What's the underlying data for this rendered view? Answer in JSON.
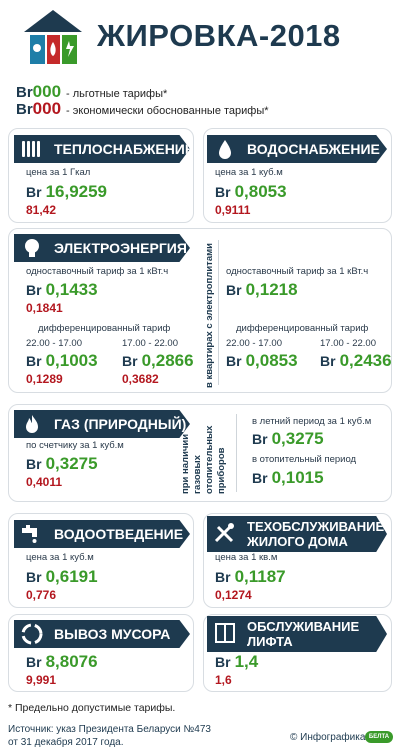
{
  "header": {
    "title": "ЖИРОВКА-2018"
  },
  "legend": {
    "br": "Br",
    "digits": "000",
    "preferential": "- льготные тарифы*",
    "economic": "- экономически обоснованные тарифы*"
  },
  "currency": "Br",
  "heating": {
    "title": "ТЕПЛОСНАБЖЕНИЕ",
    "unit": "цена за 1 Гкал",
    "pref": "16,9259",
    "econ": "81,42"
  },
  "water": {
    "title": "ВОДОСНАБЖЕНИЕ",
    "unit": "цена за 1 куб.м",
    "pref": "0,8053",
    "econ": "0,9111"
  },
  "electricity": {
    "title": "ЭЛЕКТРОЭНЕРГИЯ",
    "single_label": "одноставочный тариф за 1 кВт.ч",
    "single_pref": "0,1433",
    "single_econ": "0,1841",
    "diff_label": "дифференцированный тариф",
    "period1": "22.00 - 17.00",
    "period2": "17.00 - 22.00",
    "diff1_pref": "0,1003",
    "diff1_econ": "0,1289",
    "diff2_pref": "0,2866",
    "diff2_econ": "0,3682",
    "side_label": "в квартирах с электроплитами",
    "side_single_label": "одноставочный тариф за 1 кВт.ч",
    "side_single": "0,1218",
    "side_diff_label": "дифференцированный тариф",
    "side_period1": "22.00 - 17.00",
    "side_period2": "17.00 - 22.00",
    "side_diff1": "0,0853",
    "side_diff2": "0,2436"
  },
  "gas": {
    "title": "ГАЗ (ПРИРОДНЫЙ)",
    "meter_label": "по счетчику за 1 куб.м",
    "pref": "0,3275",
    "econ": "0,4011",
    "side_label_lines": [
      "при наличии",
      "газовых",
      "отопительных",
      "приборов"
    ],
    "summer_label": "в летний период за 1 куб.м",
    "summer": "0,3275",
    "heating_label": "в отопительный период",
    "heating": "0,1015"
  },
  "sewer": {
    "title": "ВОДООТВЕДЕНИЕ",
    "unit": "цена за 1 куб.м",
    "pref": "0,6191",
    "econ": "0,776"
  },
  "maintenance": {
    "title_lines": [
      "ТЕХОБСЛУЖИВАНИЕ",
      "ЖИЛОГО ДОМА"
    ],
    "unit": "цена за 1 кв.м",
    "pref": "0,1187",
    "econ": "0,1274"
  },
  "garbage": {
    "title": "ВЫВОЗ МУСОРА",
    "pref": "8,8076",
    "econ": "9,991"
  },
  "elevator": {
    "title_lines": [
      "ОБСЛУЖИВАНИЕ",
      "ЛИФТА"
    ],
    "pref": "1,4",
    "econ": "1,6"
  },
  "footer": {
    "note": "* Предельно допустимые тарифы.",
    "source_line1": "Источник: указ Президента Беларуси №473",
    "source_line2": "от 31 декабря 2017 года.",
    "credit": "© Инфографика",
    "badge": "БЕЛТА"
  },
  "colors": {
    "navy": "#1e3a4f",
    "green": "#3a9a2a",
    "red": "#b3171f"
  }
}
